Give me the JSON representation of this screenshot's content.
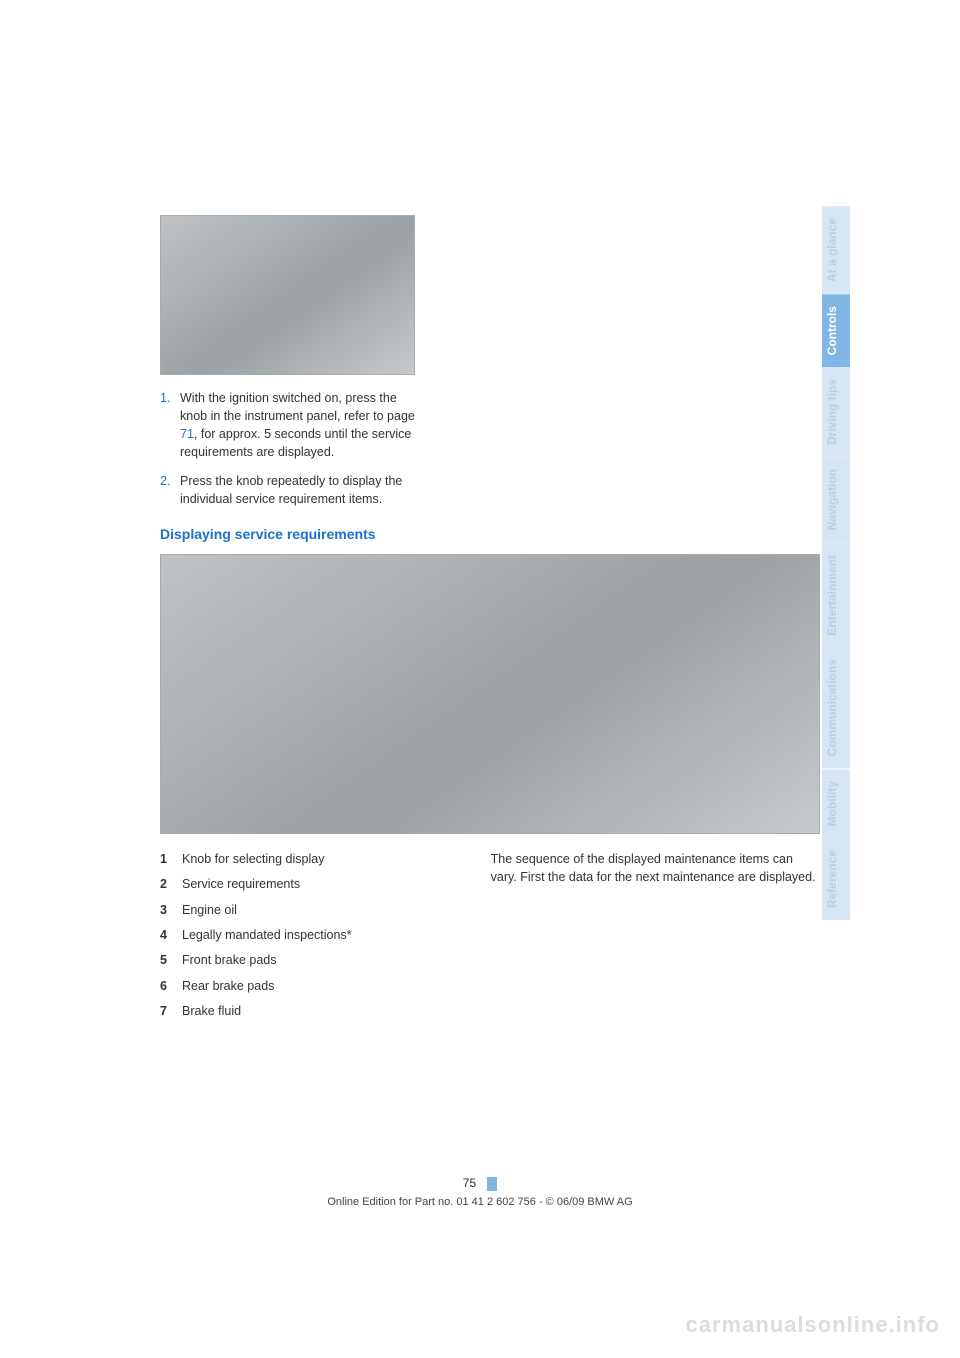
{
  "steps": [
    {
      "num": "1.",
      "text_before": "With the ignition switched on, press the knob in the instrument panel, refer to page ",
      "link": "71",
      "text_after": ", for approx. 5 seconds until the service requirements are displayed."
    },
    {
      "num": "2.",
      "text_before": "Press the knob repeatedly to display the individual service requirement items.",
      "link": "",
      "text_after": ""
    }
  ],
  "subheading": "Displaying service requirements",
  "legend": [
    {
      "num": "1",
      "label": "Knob for selecting display"
    },
    {
      "num": "2",
      "label": "Service requirements"
    },
    {
      "num": "3",
      "label": "Engine oil"
    },
    {
      "num": "4",
      "label": "Legally mandated inspections*"
    },
    {
      "num": "5",
      "label": "Front brake pads"
    },
    {
      "num": "6",
      "label": "Rear brake pads"
    },
    {
      "num": "7",
      "label": "Brake fluid"
    }
  ],
  "right_paragraph": "The sequence of the displayed maintenance items can vary. First the data for the next maintenance are displayed.",
  "page_number": "75",
  "footer_line": "Online Edition for Part no. 01 41 2 602 756 - © 06/09 BMW AG",
  "watermark": "carmanualsonline.info",
  "tabs": [
    {
      "label": "At a glance",
      "active": false
    },
    {
      "label": "Controls",
      "active": true
    },
    {
      "label": "Driving tips",
      "active": false
    },
    {
      "label": "Navigation",
      "active": false
    },
    {
      "label": "Entertainment",
      "active": false
    },
    {
      "label": "Communications",
      "active": false
    },
    {
      "label": "Mobility",
      "active": false
    },
    {
      "label": "Reference",
      "active": false
    }
  ],
  "colors": {
    "link": "#1a73c9",
    "tab_active_bg": "#7fb6e5",
    "tab_inactive_bg": "#d8e6f3",
    "tab_active_text": "#ffffff",
    "tab_inactive_text": "#b9cfe4"
  }
}
